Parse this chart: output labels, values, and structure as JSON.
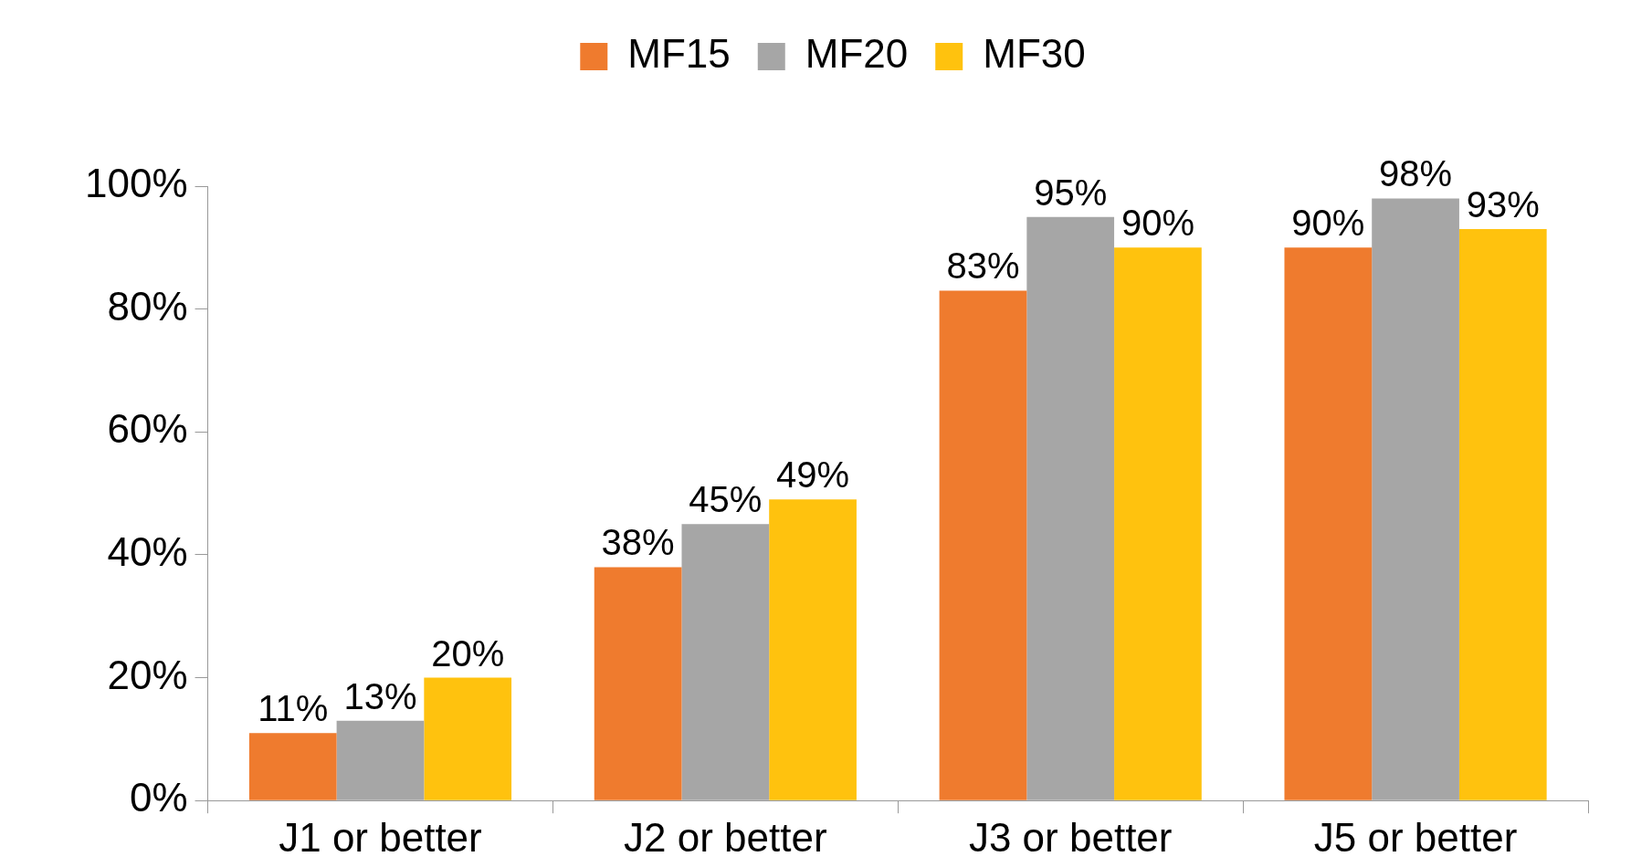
{
  "chart_data": {
    "type": "bar",
    "categories": [
      "J1 or better",
      "J2 or better",
      "J3 or better",
      "J5 or better"
    ],
    "series": [
      {
        "name": "MF15",
        "color": "#ef7b2e",
        "values": [
          11,
          38,
          83,
          90
        ],
        "value_labels": [
          "11%",
          "38%",
          "83%",
          "90%"
        ]
      },
      {
        "name": "MF20",
        "color": "#a6a6a6",
        "values": [
          13,
          45,
          95,
          98
        ],
        "value_labels": [
          "13%",
          "45%",
          "95%",
          "98%"
        ]
      },
      {
        "name": "MF30",
        "color": "#ffc20e",
        "values": [
          20,
          49,
          90,
          93
        ],
        "value_labels": [
          "20%",
          "49%",
          "90%",
          "93%"
        ]
      }
    ],
    "ylim": [
      0,
      100
    ],
    "yticks": [
      {
        "value": 0,
        "label": "0%"
      },
      {
        "value": 20,
        "label": "20%"
      },
      {
        "value": 40,
        "label": "40%"
      },
      {
        "value": 60,
        "label": "60%"
      },
      {
        "value": 80,
        "label": "80%"
      },
      {
        "value": 100,
        "label": "100%"
      }
    ],
    "legend": "top",
    "grid": false
  }
}
